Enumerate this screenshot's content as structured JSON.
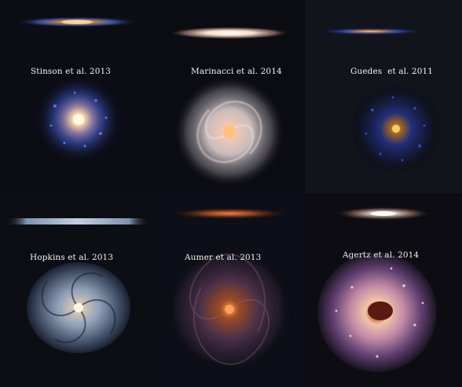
{
  "simulations": [
    {
      "caption": "Stinson et al. 2013",
      "palette": {
        "core": "#ffe9b0",
        "mid": "#e8943c",
        "outer": "#4a66c8",
        "arm": "#6b86ff",
        "bg": "#0b0c14"
      }
    },
    {
      "caption": "Marinacci et al. 2014",
      "palette": {
        "core": "#fff1d0",
        "mid": "#d2b9b0",
        "outer": "#8d8791",
        "arm": "#f0e6ea",
        "bg": "#0b0c12"
      }
    },
    {
      "caption": "Guedes  et al. 2011",
      "palette": {
        "core": "#ffd066",
        "mid": "#b0702a",
        "outer": "#2633a8",
        "arm": "#3f57ff",
        "bg": "#12141c"
      }
    },
    {
      "caption": "Hopkins et al. 2013",
      "palette": {
        "core": "#fff2d6",
        "mid": "#a5b4c8",
        "outer": "#5e7090",
        "arm": "#c7d8f0",
        "bg": "#0c0e14"
      }
    },
    {
      "caption": "Aumer et al. 2013",
      "palette": {
        "core": "#ffb46a",
        "mid": "#a8552c",
        "outer": "#4a3552",
        "arm": "#8a6a6c",
        "bg": "#0d0f18"
      }
    },
    {
      "caption": "Agertz et al. 2014",
      "palette": {
        "core": "#ffd9b0",
        "mid": "#c27898",
        "outer": "#6a4a86",
        "arm": "#f2d6e6",
        "bg": "#0c0c12"
      }
    }
  ]
}
